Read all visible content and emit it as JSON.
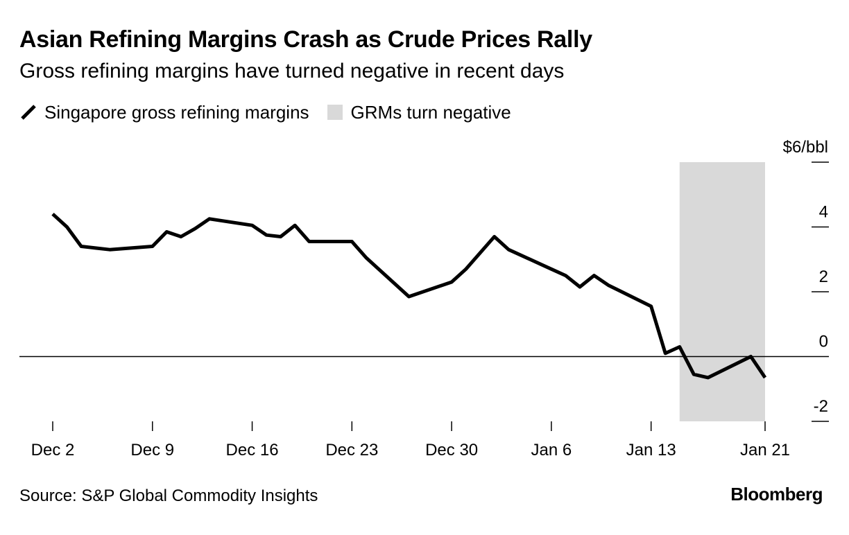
{
  "header": {
    "title": "Asian Refining Margins Crash as Crude Prices Rally",
    "subtitle": "Gross refining margins have turned negative in recent days"
  },
  "legend": {
    "series_label": "Singapore gross refining margins",
    "shade_label": "GRMs turn negative"
  },
  "footer": {
    "source": "Source: S&P Global Commodity Insights",
    "brand": "Bloomberg"
  },
  "colors": {
    "line": "#000000",
    "shade": "#d9d9d9",
    "zero_line": "#000000"
  },
  "chart_data": {
    "type": "line",
    "title": "Asian Refining Margins Crash as Crude Prices Rally",
    "subtitle": "Gross refining margins have turned negative in recent days",
    "xlabel": "",
    "ylabel": "$/bbl",
    "xlim": [
      "2024-12-02",
      "2025-01-21"
    ],
    "ylim": [
      -2,
      6
    ],
    "x_ticks": [
      {
        "date": "2024-12-02",
        "label": "Dec 2"
      },
      {
        "date": "2024-12-09",
        "label": "Dec 9"
      },
      {
        "date": "2024-12-16",
        "label": "Dec 16"
      },
      {
        "date": "2024-12-23",
        "label": "Dec 23"
      },
      {
        "date": "2024-12-30",
        "label": "Dec 30"
      },
      {
        "date": "2025-01-06",
        "label": "Jan 6"
      },
      {
        "date": "2025-01-13",
        "label": "Jan 13"
      },
      {
        "date": "2025-01-21",
        "label": "Jan 21"
      }
    ],
    "y_ticks": [
      {
        "value": 6,
        "label": "$6/bbl"
      },
      {
        "value": 4,
        "label": "4"
      },
      {
        "value": 2,
        "label": "2"
      },
      {
        "value": 0,
        "label": "0"
      },
      {
        "value": -2,
        "label": "-2"
      }
    ],
    "shaded_region": {
      "start": "2025-01-15",
      "end": "2025-01-21",
      "label": "GRMs turn negative"
    },
    "series": [
      {
        "name": "Singapore gross refining margins",
        "points": [
          {
            "x": "2024-12-02",
            "y": 4.4
          },
          {
            "x": "2024-12-03",
            "y": 4.0
          },
          {
            "x": "2024-12-04",
            "y": 3.4
          },
          {
            "x": "2024-12-05",
            "y": 3.35
          },
          {
            "x": "2024-12-06",
            "y": 3.3
          },
          {
            "x": "2024-12-09",
            "y": 3.4
          },
          {
            "x": "2024-12-10",
            "y": 3.85
          },
          {
            "x": "2024-12-11",
            "y": 3.7
          },
          {
            "x": "2024-12-12",
            "y": 3.95
          },
          {
            "x": "2024-12-13",
            "y": 4.25
          },
          {
            "x": "2024-12-16",
            "y": 4.05
          },
          {
            "x": "2024-12-17",
            "y": 3.75
          },
          {
            "x": "2024-12-18",
            "y": 3.7
          },
          {
            "x": "2024-12-19",
            "y": 4.05
          },
          {
            "x": "2024-12-20",
            "y": 3.55
          },
          {
            "x": "2024-12-23",
            "y": 3.55
          },
          {
            "x": "2024-12-24",
            "y": 3.05
          },
          {
            "x": "2024-12-27",
            "y": 1.85
          },
          {
            "x": "2024-12-30",
            "y": 2.3
          },
          {
            "x": "2024-12-31",
            "y": 2.7
          },
          {
            "x": "2025-01-02",
            "y": 3.7
          },
          {
            "x": "2025-01-03",
            "y": 3.3
          },
          {
            "x": "2025-01-06",
            "y": 2.7
          },
          {
            "x": "2025-01-07",
            "y": 2.5
          },
          {
            "x": "2025-01-08",
            "y": 2.15
          },
          {
            "x": "2025-01-09",
            "y": 2.5
          },
          {
            "x": "2025-01-10",
            "y": 2.2
          },
          {
            "x": "2025-01-13",
            "y": 1.55
          },
          {
            "x": "2025-01-14",
            "y": 0.1
          },
          {
            "x": "2025-01-15",
            "y": 0.3
          },
          {
            "x": "2025-01-16",
            "y": -0.55
          },
          {
            "x": "2025-01-17",
            "y": -0.65
          },
          {
            "x": "2025-01-20",
            "y": 0.0
          },
          {
            "x": "2025-01-21",
            "y": -0.65
          }
        ]
      }
    ]
  }
}
